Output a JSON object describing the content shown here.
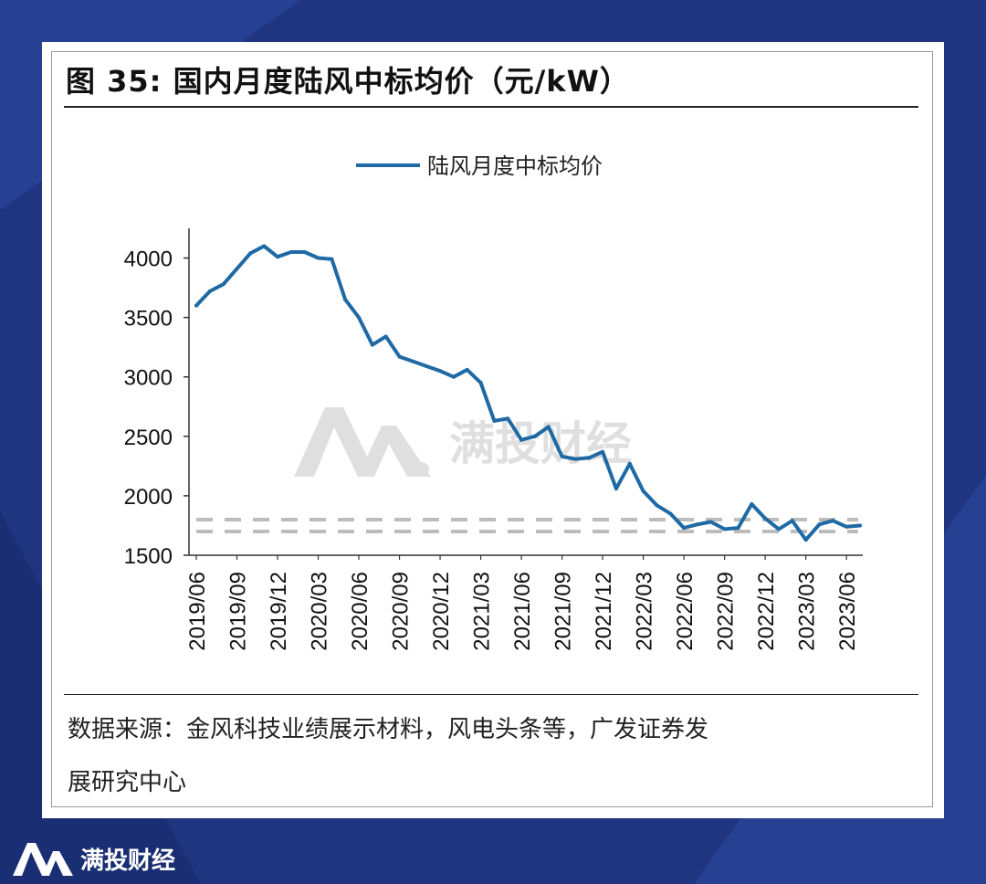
{
  "figure": {
    "title": "图 35: 国内月度陆风中标均价（元/kW）",
    "source_line1": "数据来源：金风科技业绩展示材料，风电头条等，广发证券发",
    "source_line2": "展研究中心"
  },
  "brand": {
    "name": "满投财经",
    "watermark": "满投财经"
  },
  "colors": {
    "series": "#1f6aa5",
    "background": "#1f3580",
    "reference": "#bcbcbc",
    "axis": "#333333"
  },
  "chart_data": {
    "type": "line",
    "title": "",
    "xlabel": "",
    "ylabel": "",
    "ylim": [
      1500,
      4250
    ],
    "yticks": [
      1500,
      2000,
      2500,
      3000,
      3500,
      4000
    ],
    "legend": "top-center",
    "grid": false,
    "series": [
      {
        "name": "陆风月度中标均价",
        "values": [
          3600,
          3720,
          3780,
          3910,
          4040,
          4100,
          4010,
          4050,
          4050,
          4000,
          3990,
          3650,
          3500,
          3270,
          3340,
          3170,
          3130,
          3090,
          3050,
          3000,
          3060,
          2950,
          2630,
          2650,
          2470,
          2500,
          2580,
          2330,
          2310,
          2320,
          2370,
          2060,
          2270,
          2040,
          1920,
          1850,
          1730,
          1760,
          1780,
          1720,
          1730,
          1930,
          1810,
          1720,
          1790,
          1630,
          1760,
          1790,
          1740,
          1750
        ]
      }
    ],
    "x": [
      "2019/06",
      "2019/07",
      "2019/08",
      "2019/09",
      "2019/10",
      "2019/11",
      "2019/12",
      "2020/01",
      "2020/02",
      "2020/03",
      "2020/04",
      "2020/05",
      "2020/06",
      "2020/07",
      "2020/08",
      "2020/09",
      "2020/10",
      "2020/11",
      "2020/12",
      "2021/01",
      "2021/02",
      "2021/03",
      "2021/04",
      "2021/05",
      "2021/06",
      "2021/07",
      "2021/08",
      "2021/09",
      "2021/10",
      "2021/11",
      "2021/12",
      "2022/01",
      "2022/02",
      "2022/03",
      "2022/04",
      "2022/05",
      "2022/06",
      "2022/07",
      "2022/08",
      "2022/09",
      "2022/10",
      "2022/11",
      "2022/12",
      "2023/01",
      "2023/02",
      "2023/03",
      "2023/04",
      "2023/05",
      "2023/06",
      "2023/07"
    ],
    "x_tick_labels": [
      "2019/06",
      "2019/09",
      "2019/12",
      "2020/03",
      "2020/06",
      "2020/09",
      "2020/12",
      "2021/03",
      "2021/06",
      "2021/09",
      "2021/12",
      "2022/03",
      "2022/06",
      "2022/09",
      "2022/12",
      "2023/03",
      "2023/06"
    ],
    "reference_lines": [
      1700,
      1800
    ]
  }
}
